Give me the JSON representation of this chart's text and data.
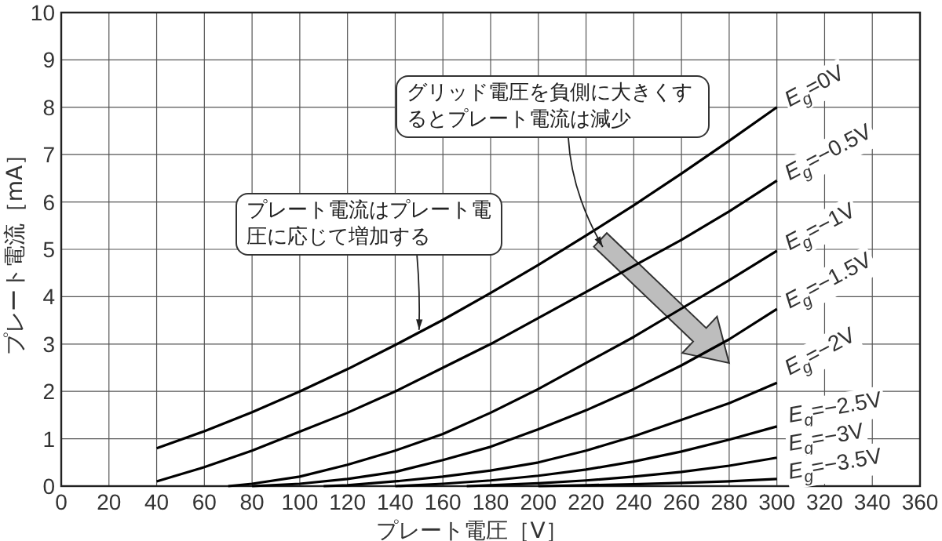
{
  "chart_data": {
    "type": "line",
    "xlabel": "プレート電圧［V］",
    "ylabel": "プレート電流［mA］",
    "xlim": [
      0,
      360
    ],
    "ylim": [
      0,
      10
    ],
    "xticks": [
      0,
      20,
      40,
      60,
      80,
      100,
      120,
      140,
      160,
      180,
      200,
      220,
      240,
      260,
      280,
      300,
      320,
      340,
      360
    ],
    "yticks": [
      0,
      1,
      2,
      3,
      4,
      5,
      6,
      7,
      8,
      9,
      10
    ],
    "grid": true,
    "series": [
      {
        "name": "*E*$_{g}$=0V",
        "color": "#000000",
        "x": [
          40,
          60,
          80,
          100,
          120,
          140,
          160,
          180,
          200,
          220,
          240,
          260,
          280,
          300
        ],
        "values": [
          0.8,
          1.16,
          1.56,
          2.0,
          2.47,
          2.98,
          3.51,
          4.08,
          4.67,
          5.29,
          5.93,
          6.6,
          7.29,
          8.0
        ]
      },
      {
        "name": "*E*$_{g}$=−0.5V",
        "color": "#000000",
        "x": [
          40,
          60,
          80,
          100,
          120,
          140,
          160,
          180,
          200,
          220,
          240,
          260,
          280,
          300
        ],
        "values": [
          0.1,
          0.4,
          0.75,
          1.15,
          1.55,
          2.0,
          2.5,
          3.0,
          3.55,
          4.1,
          4.65,
          5.2,
          5.8,
          6.45
        ]
      },
      {
        "name": "*E*$_{g}$=−1V",
        "color": "#000000",
        "x": [
          70,
          80,
          100,
          120,
          140,
          160,
          180,
          200,
          220,
          240,
          260,
          280,
          300
        ],
        "values": [
          0,
          0.05,
          0.2,
          0.45,
          0.75,
          1.1,
          1.55,
          2.05,
          2.6,
          3.15,
          3.75,
          4.35,
          4.97
        ]
      },
      {
        "name": "*E*$_{g}$=−1.5V",
        "color": "#000000",
        "x": [
          80,
          100,
          120,
          140,
          160,
          180,
          200,
          220,
          240,
          260,
          280,
          300
        ],
        "values": [
          0,
          0.05,
          0.15,
          0.3,
          0.55,
          0.83,
          1.2,
          1.6,
          2.05,
          2.55,
          3.1,
          3.74
        ]
      },
      {
        "name": "*E*$_{g}$=−2V",
        "color": "#000000",
        "x": [
          110,
          120,
          140,
          160,
          180,
          200,
          220,
          240,
          260,
          280,
          300
        ],
        "values": [
          0,
          0.02,
          0.1,
          0.2,
          0.33,
          0.5,
          0.75,
          1.05,
          1.4,
          1.75,
          2.18
        ]
      },
      {
        "name": "*E*$_{g}$=−2.5V",
        "color": "#000000",
        "x": [
          140,
          160,
          180,
          200,
          220,
          240,
          260,
          280,
          300
        ],
        "values": [
          0,
          0.05,
          0.12,
          0.22,
          0.35,
          0.52,
          0.73,
          0.98,
          1.26
        ]
      },
      {
        "name": "*E*$_{g}$=−3V",
        "color": "#000000",
        "x": [
          170,
          180,
          200,
          220,
          240,
          260,
          280,
          300
        ],
        "values": [
          0,
          0.02,
          0.06,
          0.12,
          0.2,
          0.3,
          0.43,
          0.6
        ]
      },
      {
        "name": "*E*$_{g}$=−3.5V",
        "color": "#000000",
        "x": [
          200,
          220,
          240,
          260,
          280,
          300
        ],
        "values": [
          0,
          0.02,
          0.04,
          0.07,
          0.1,
          0.15
        ]
      }
    ],
    "annotations": [
      {
        "text": "プレート電流はプレート電圧に応じて増加する",
        "x": 150,
        "y": 3.3
      },
      "グリッド電圧を負側に大きくするとプレート電流は減少"
    ]
  }
}
